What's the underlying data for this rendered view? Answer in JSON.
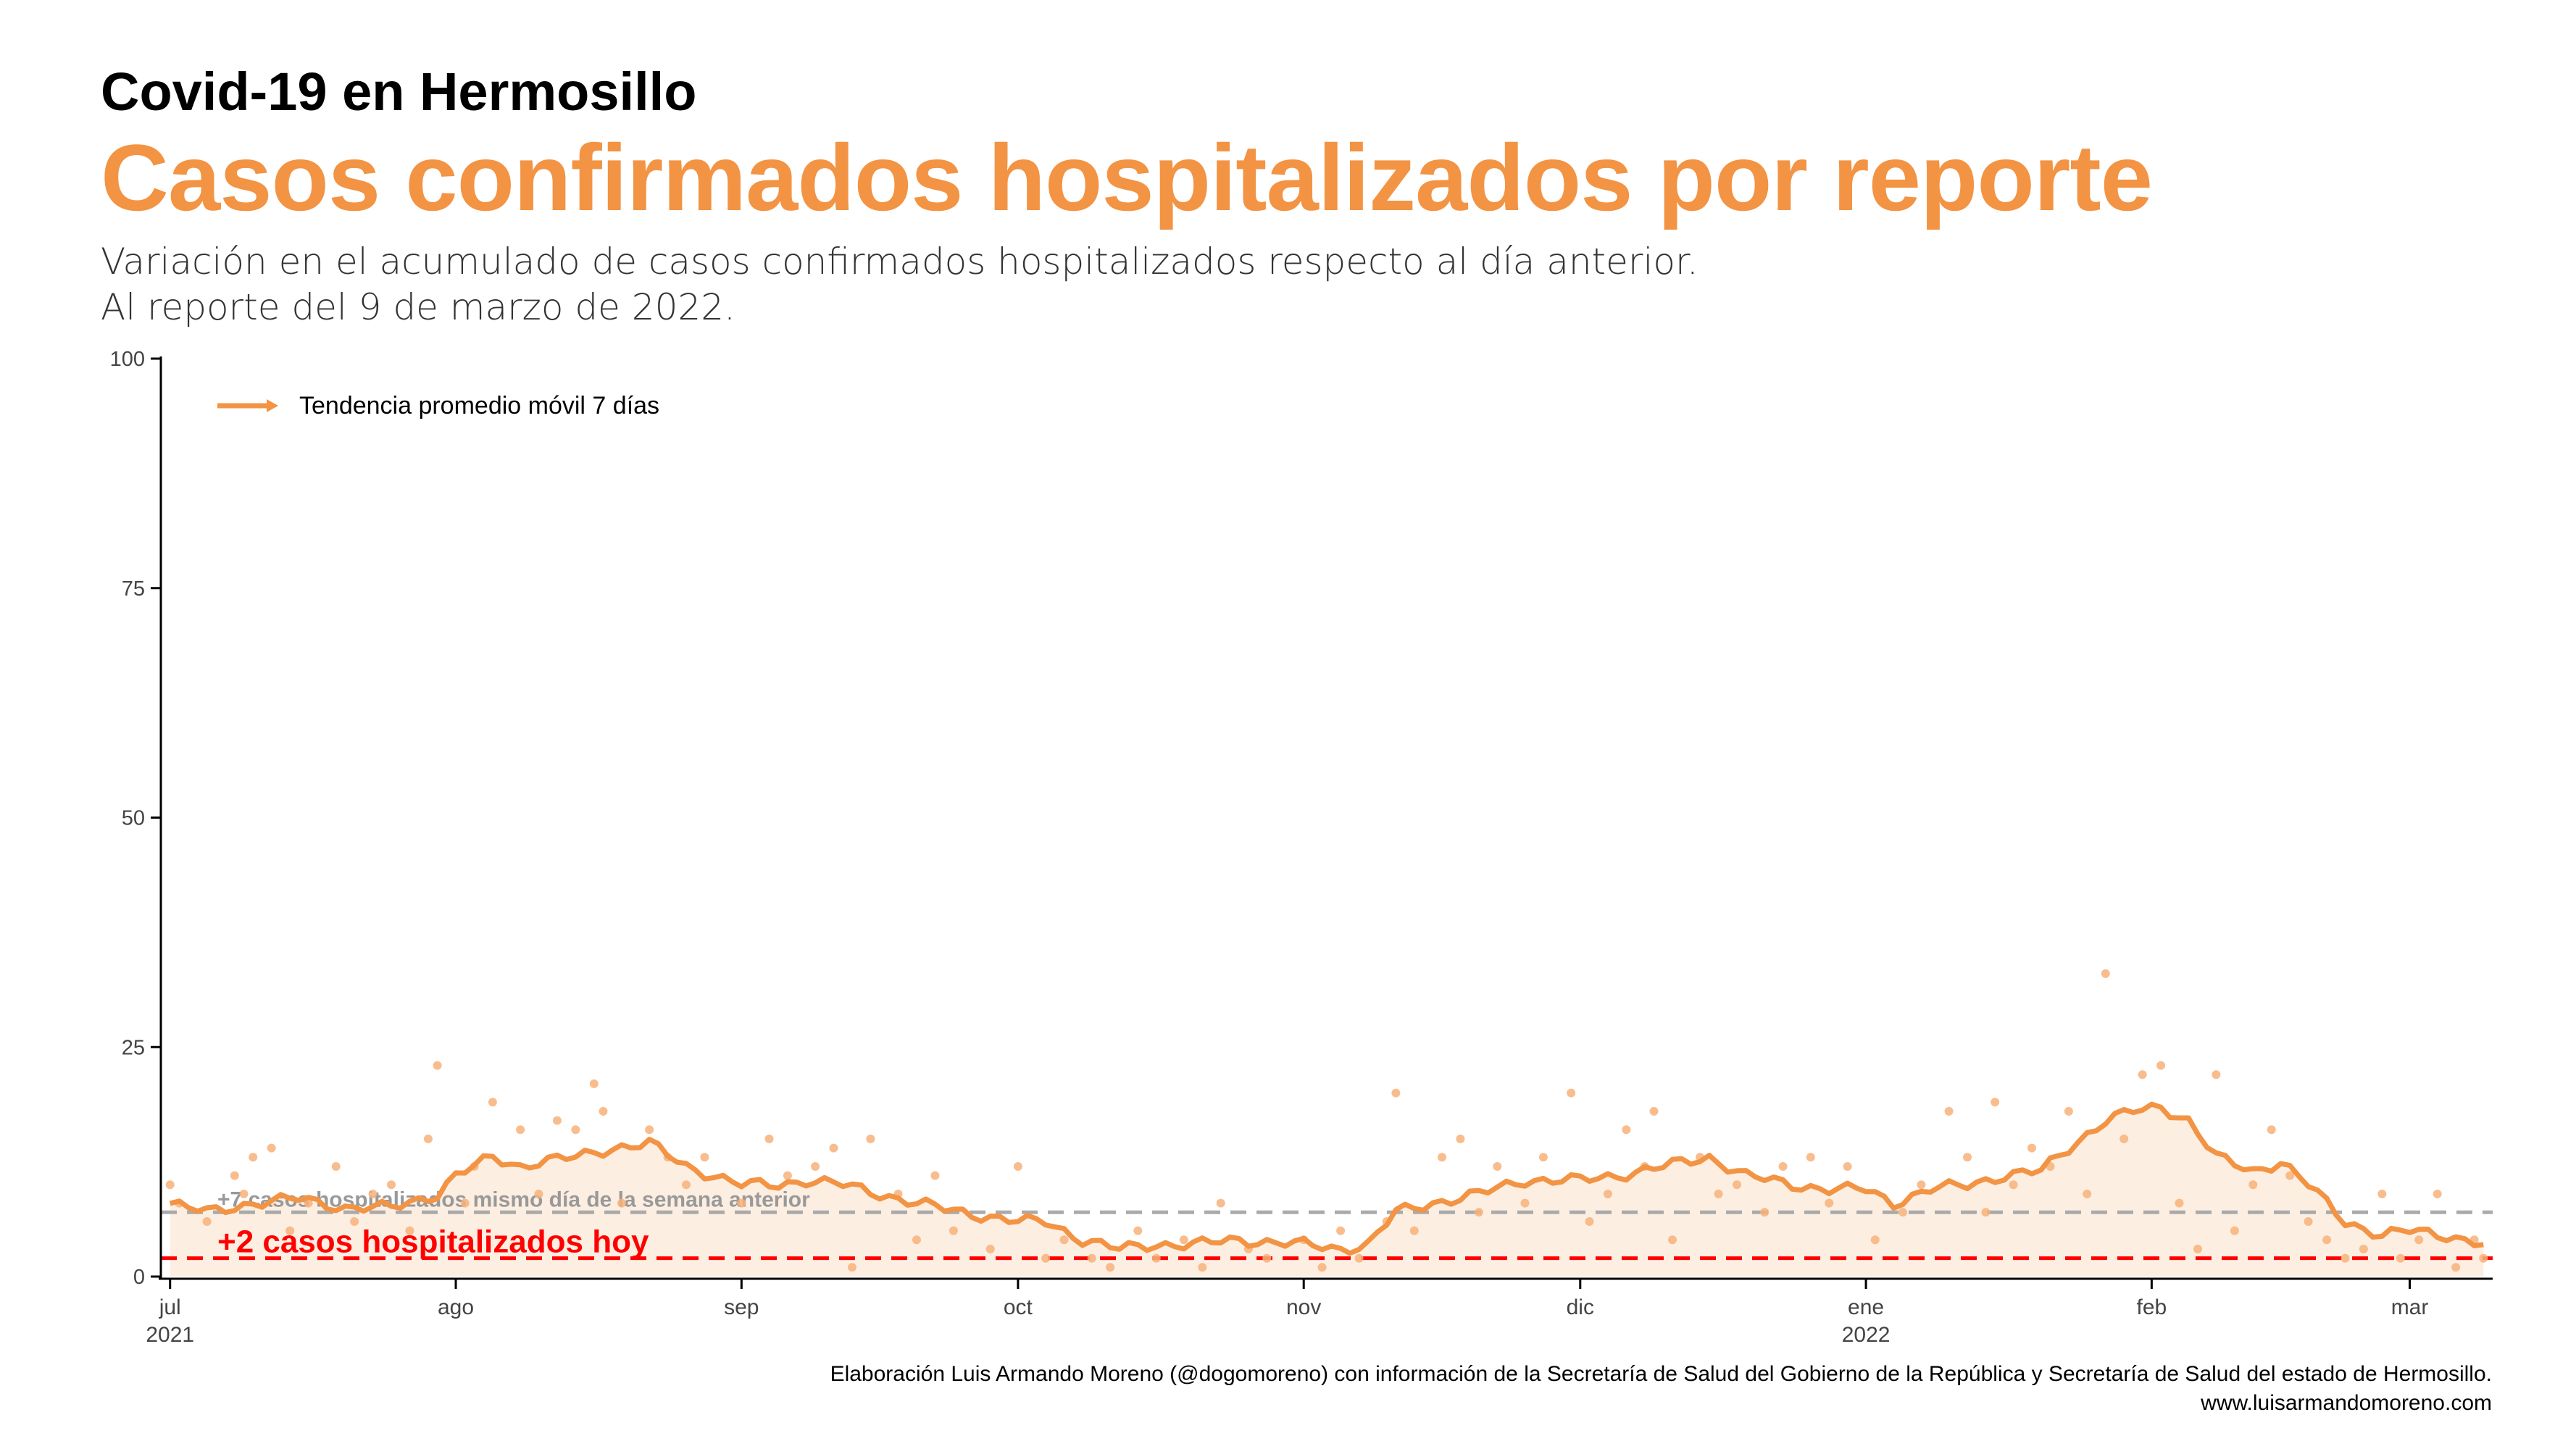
{
  "header": {
    "kicker": "Covid-19 en Hermosillo",
    "title": "Casos confirmados hospitalizados por reporte",
    "subtitle_line1": "Variación en el acumulado de casos confirmados hospitalizados respecto al día anterior.",
    "subtitle_line2": "Al reporte del 9 de marzo de 2022."
  },
  "footer": {
    "credit": "Elaboración Luis Armando Moreno (@dogomoreno) con información de la Secretaría de Salud del Gobierno de la República y Secretaría de Salud del estado de Hermosillo.",
    "website": "www.luisarmandomoreno.com"
  },
  "colors": {
    "accent": "#f29444",
    "points": "#f7b27a",
    "area": "#fdeee2",
    "today_line": "#ff0000",
    "reference_line": "#aaaaaa"
  },
  "chart_data": {
    "type": "line",
    "ylim": [
      0,
      100
    ],
    "yticks": [
      0,
      25,
      50,
      75,
      100
    ],
    "xlim": [
      "2021-06-30",
      "2022-03-10"
    ],
    "xticks": [
      {
        "date": "2021-07-01",
        "label": "jul",
        "label2": "2021"
      },
      {
        "date": "2021-08-01",
        "label": "ago",
        "label2": ""
      },
      {
        "date": "2021-09-01",
        "label": "sep",
        "label2": ""
      },
      {
        "date": "2021-10-01",
        "label": "oct",
        "label2": ""
      },
      {
        "date": "2021-11-01",
        "label": "nov",
        "label2": ""
      },
      {
        "date": "2021-12-01",
        "label": "dic",
        "label2": ""
      },
      {
        "date": "2022-01-01",
        "label": "ene",
        "label2": "2022"
      },
      {
        "date": "2022-02-01",
        "label": "feb",
        "label2": ""
      },
      {
        "date": "2022-03-01",
        "label": "mar",
        "label2": ""
      }
    ],
    "legend": {
      "label": "Tendencia promedio móvil 7 días",
      "position": "top-left"
    },
    "today_line": {
      "value": 2,
      "label": "+2 casos hospitalizados hoy"
    },
    "reference_line": {
      "value": 7,
      "label": "+7 casos hospitalizados mismo día de la semana anterior"
    },
    "trend_anchors": [
      [
        "2021-07-01",
        8
      ],
      [
        "2021-07-05",
        7
      ],
      [
        "2021-07-10",
        8
      ],
      [
        "2021-07-15",
        8.5
      ],
      [
        "2021-07-20",
        7.5
      ],
      [
        "2021-07-25",
        7.5
      ],
      [
        "2021-07-30",
        9
      ],
      [
        "2021-08-01",
        11
      ],
      [
        "2021-08-05",
        13
      ],
      [
        "2021-08-08",
        12
      ],
      [
        "2021-08-10",
        12.5
      ],
      [
        "2021-08-14",
        13
      ],
      [
        "2021-08-18",
        14
      ],
      [
        "2021-08-22",
        14.5
      ],
      [
        "2021-08-26",
        12
      ],
      [
        "2021-09-01",
        10
      ],
      [
        "2021-09-05",
        10
      ],
      [
        "2021-09-08",
        10.5
      ],
      [
        "2021-09-12",
        10
      ],
      [
        "2021-09-16",
        9
      ],
      [
        "2021-09-20",
        8
      ],
      [
        "2021-09-25",
        7
      ],
      [
        "2021-10-01",
        6
      ],
      [
        "2021-10-04",
        6
      ],
      [
        "2021-10-08",
        4
      ],
      [
        "2021-10-12",
        3
      ],
      [
        "2021-10-16",
        3.5
      ],
      [
        "2021-10-20",
        3.5
      ],
      [
        "2021-10-25",
        4
      ],
      [
        "2021-11-01",
        3.5
      ],
      [
        "2021-11-05",
        3
      ],
      [
        "2021-11-08",
        3.5
      ],
      [
        "2021-11-11",
        7
      ],
      [
        "2021-11-15",
        8
      ],
      [
        "2021-11-20",
        9
      ],
      [
        "2021-11-25",
        10.5
      ],
      [
        "2021-12-01",
        10.5
      ],
      [
        "2021-12-05",
        11
      ],
      [
        "2021-12-10",
        12
      ],
      [
        "2021-12-15",
        13
      ],
      [
        "2021-12-19",
        11
      ],
      [
        "2021-12-24",
        10
      ],
      [
        "2021-12-28",
        9.5
      ],
      [
        "2022-01-01",
        9.5
      ],
      [
        "2022-01-04",
        8
      ],
      [
        "2022-01-08",
        9.5
      ],
      [
        "2022-01-12",
        10
      ],
      [
        "2022-01-16",
        11
      ],
      [
        "2022-01-20",
        11.5
      ],
      [
        "2022-01-23",
        14
      ],
      [
        "2022-01-27",
        17
      ],
      [
        "2022-01-30",
        18
      ],
      [
        "2022-02-02",
        18.5
      ],
      [
        "2022-02-05",
        17
      ],
      [
        "2022-02-08",
        13
      ],
      [
        "2022-02-12",
        11.5
      ],
      [
        "2022-02-15",
        12.5
      ],
      [
        "2022-02-18",
        10
      ],
      [
        "2022-02-22",
        6
      ],
      [
        "2022-02-26",
        4.5
      ],
      [
        "2022-03-01",
        5
      ],
      [
        "2022-03-05",
        4.5
      ],
      [
        "2022-03-09",
        3.5
      ]
    ],
    "daily_values": [
      [
        "2021-07-01",
        10
      ],
      [
        "2021-07-02",
        8
      ],
      [
        "2021-07-05",
        6
      ],
      [
        "2021-07-08",
        11
      ],
      [
        "2021-07-09",
        9
      ],
      [
        "2021-07-10",
        13
      ],
      [
        "2021-07-12",
        14
      ],
      [
        "2021-07-14",
        5
      ],
      [
        "2021-07-16",
        8
      ],
      [
        "2021-07-19",
        12
      ],
      [
        "2021-07-21",
        6
      ],
      [
        "2021-07-23",
        9
      ],
      [
        "2021-07-25",
        10
      ],
      [
        "2021-07-27",
        5
      ],
      [
        "2021-07-29",
        15
      ],
      [
        "2021-07-30",
        23
      ],
      [
        "2021-08-02",
        8
      ],
      [
        "2021-08-03",
        12
      ],
      [
        "2021-08-05",
        19
      ],
      [
        "2021-08-08",
        16
      ],
      [
        "2021-08-10",
        9
      ],
      [
        "2021-08-12",
        17
      ],
      [
        "2021-08-14",
        16
      ],
      [
        "2021-08-16",
        21
      ],
      [
        "2021-08-17",
        18
      ],
      [
        "2021-08-19",
        8
      ],
      [
        "2021-08-22",
        16
      ],
      [
        "2021-08-24",
        13
      ],
      [
        "2021-08-26",
        10
      ],
      [
        "2021-08-28",
        13
      ],
      [
        "2021-09-01",
        8
      ],
      [
        "2021-09-04",
        15
      ],
      [
        "2021-09-06",
        11
      ],
      [
        "2021-09-09",
        12
      ],
      [
        "2021-09-11",
        14
      ],
      [
        "2021-09-13",
        1
      ],
      [
        "2021-09-15",
        15
      ],
      [
        "2021-09-18",
        9
      ],
      [
        "2021-09-20",
        4
      ],
      [
        "2021-09-22",
        11
      ],
      [
        "2021-09-24",
        5
      ],
      [
        "2021-09-28",
        3
      ],
      [
        "2021-10-01",
        12
      ],
      [
        "2021-10-04",
        2
      ],
      [
        "2021-10-06",
        4
      ],
      [
        "2021-10-09",
        2
      ],
      [
        "2021-10-11",
        1
      ],
      [
        "2021-10-14",
        5
      ],
      [
        "2021-10-16",
        2
      ],
      [
        "2021-10-19",
        4
      ],
      [
        "2021-10-21",
        1
      ],
      [
        "2021-10-23",
        8
      ],
      [
        "2021-10-26",
        3
      ],
      [
        "2021-10-28",
        2
      ],
      [
        "2021-11-01",
        4
      ],
      [
        "2021-11-03",
        1
      ],
      [
        "2021-11-05",
        5
      ],
      [
        "2021-11-07",
        2
      ],
      [
        "2021-11-10",
        6
      ],
      [
        "2021-11-11",
        20
      ],
      [
        "2021-11-13",
        5
      ],
      [
        "2021-11-16",
        13
      ],
      [
        "2021-11-18",
        15
      ],
      [
        "2021-11-20",
        7
      ],
      [
        "2021-11-22",
        12
      ],
      [
        "2021-11-25",
        8
      ],
      [
        "2021-11-27",
        13
      ],
      [
        "2021-11-30",
        20
      ],
      [
        "2021-12-02",
        6
      ],
      [
        "2021-12-04",
        9
      ],
      [
        "2021-12-06",
        16
      ],
      [
        "2021-12-08",
        12
      ],
      [
        "2021-12-09",
        18
      ],
      [
        "2021-12-11",
        4
      ],
      [
        "2021-12-14",
        13
      ],
      [
        "2021-12-16",
        9
      ],
      [
        "2021-12-18",
        10
      ],
      [
        "2021-12-21",
        7
      ],
      [
        "2021-12-23",
        12
      ],
      [
        "2021-12-26",
        13
      ],
      [
        "2021-12-28",
        8
      ],
      [
        "2021-12-30",
        12
      ],
      [
        "2022-01-02",
        4
      ],
      [
        "2022-01-05",
        7
      ],
      [
        "2022-01-07",
        10
      ],
      [
        "2022-01-10",
        18
      ],
      [
        "2022-01-12",
        13
      ],
      [
        "2022-01-14",
        7
      ],
      [
        "2022-01-15",
        19
      ],
      [
        "2022-01-17",
        10
      ],
      [
        "2022-01-19",
        14
      ],
      [
        "2022-01-21",
        12
      ],
      [
        "2022-01-23",
        18
      ],
      [
        "2022-01-25",
        9
      ],
      [
        "2022-01-27",
        33
      ],
      [
        "2022-01-29",
        15
      ],
      [
        "2022-01-31",
        22
      ],
      [
        "2022-02-02",
        23
      ],
      [
        "2022-02-04",
        8
      ],
      [
        "2022-02-06",
        3
      ],
      [
        "2022-02-08",
        22
      ],
      [
        "2022-02-10",
        5
      ],
      [
        "2022-02-12",
        10
      ],
      [
        "2022-02-14",
        16
      ],
      [
        "2022-02-16",
        11
      ],
      [
        "2022-02-18",
        6
      ],
      [
        "2022-02-20",
        4
      ],
      [
        "2022-02-22",
        2
      ],
      [
        "2022-02-24",
        3
      ],
      [
        "2022-02-26",
        9
      ],
      [
        "2022-02-28",
        2
      ],
      [
        "2022-03-02",
        4
      ],
      [
        "2022-03-04",
        9
      ],
      [
        "2022-03-06",
        1
      ],
      [
        "2022-03-08",
        4
      ],
      [
        "2022-03-09",
        2
      ]
    ]
  }
}
